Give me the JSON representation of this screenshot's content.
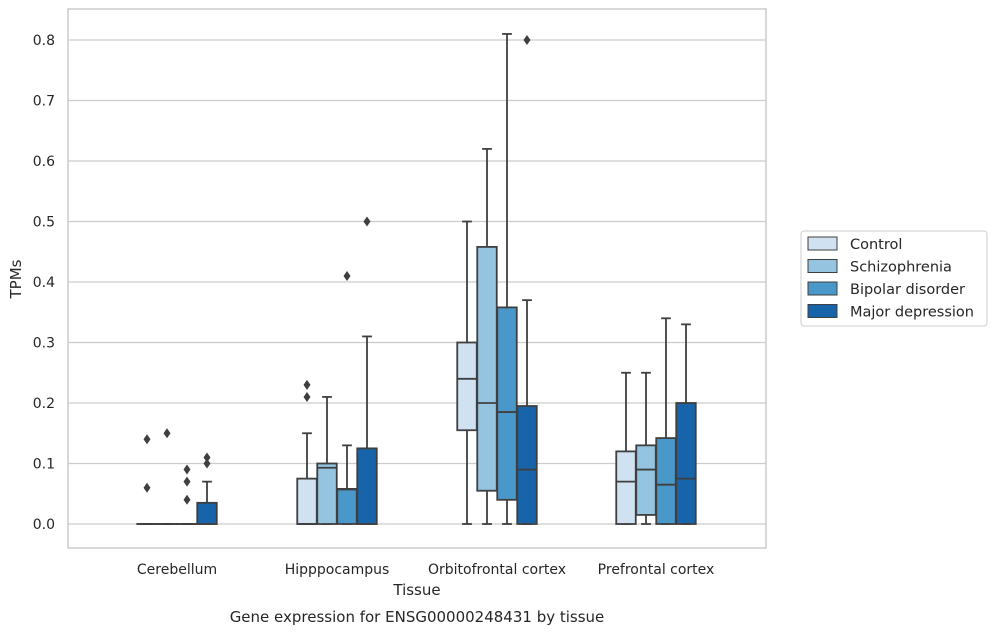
{
  "chart_data": {
    "type": "box",
    "title": "",
    "caption": "Gene expression for ENSG00000248431 by tissue",
    "xlabel": "Tissue",
    "ylabel": "TPMs",
    "ylim": [
      -0.04,
      0.85
    ],
    "yticks": [
      0.0,
      0.1,
      0.2,
      0.3,
      0.4,
      0.5,
      0.6,
      0.7,
      0.8
    ],
    "ytick_labels": [
      "0.0",
      "0.1",
      "0.2",
      "0.3",
      "0.4",
      "0.5",
      "0.6",
      "0.7",
      "0.8"
    ],
    "grid": "horizontal",
    "legend_position": "right",
    "categories": [
      "Cerebellum",
      "Hipppocampus",
      "Orbitofrontal cortex",
      "Prefrontal cortex"
    ],
    "series": [
      {
        "name": "Control",
        "color": "#d0e1f2",
        "boxes": [
          {
            "q1": 0.0,
            "median": 0.0,
            "q3": 0.0,
            "whisker_low": 0.0,
            "whisker_high": 0.0,
            "outliers": [
              0.06,
              0.14
            ]
          },
          {
            "q1": 0.0,
            "median": 0.0,
            "q3": 0.075,
            "whisker_low": 0.0,
            "whisker_high": 0.15,
            "outliers": [
              0.21,
              0.23
            ]
          },
          {
            "q1": 0.155,
            "median": 0.24,
            "q3": 0.3,
            "whisker_low": 0.0,
            "whisker_high": 0.5,
            "outliers": []
          },
          {
            "q1": 0.0,
            "median": 0.07,
            "q3": 0.12,
            "whisker_low": 0.0,
            "whisker_high": 0.25,
            "outliers": []
          }
        ]
      },
      {
        "name": "Schizophrenia",
        "color": "#94c4df",
        "boxes": [
          {
            "q1": 0.0,
            "median": 0.0,
            "q3": 0.0,
            "whisker_low": 0.0,
            "whisker_high": 0.0,
            "outliers": [
              0.15
            ]
          },
          {
            "q1": 0.0,
            "median": 0.093,
            "q3": 0.1,
            "whisker_low": 0.0,
            "whisker_high": 0.21,
            "outliers": []
          },
          {
            "q1": 0.055,
            "median": 0.2,
            "q3": 0.458,
            "whisker_low": 0.0,
            "whisker_high": 0.62,
            "outliers": []
          },
          {
            "q1": 0.015,
            "median": 0.09,
            "q3": 0.13,
            "whisker_low": 0.0,
            "whisker_high": 0.25,
            "outliers": []
          }
        ]
      },
      {
        "name": "Bipolar disorder",
        "color": "#4a98c9",
        "boxes": [
          {
            "q1": 0.0,
            "median": 0.0,
            "q3": 0.0,
            "whisker_low": 0.0,
            "whisker_high": 0.0,
            "outliers": [
              0.04,
              0.07,
              0.09
            ]
          },
          {
            "q1": 0.0,
            "median": 0.057,
            "q3": 0.058,
            "whisker_low": 0.0,
            "whisker_high": 0.13,
            "outliers": [
              0.41
            ]
          },
          {
            "q1": 0.04,
            "median": 0.185,
            "q3": 0.358,
            "whisker_low": 0.0,
            "whisker_high": 0.81,
            "outliers": []
          },
          {
            "q1": 0.0,
            "median": 0.065,
            "q3": 0.142,
            "whisker_low": 0.0,
            "whisker_high": 0.34,
            "outliers": []
          }
        ]
      },
      {
        "name": "Major depression",
        "color": "#1764ab",
        "boxes": [
          {
            "q1": 0.0,
            "median": 0.0,
            "q3": 0.035,
            "whisker_low": 0.0,
            "whisker_high": 0.07,
            "outliers": [
              0.1,
              0.11
            ]
          },
          {
            "q1": 0.0,
            "median": 0.0,
            "q3": 0.125,
            "whisker_low": 0.0,
            "whisker_high": 0.31,
            "outliers": [
              0.5
            ]
          },
          {
            "q1": 0.0,
            "median": 0.09,
            "q3": 0.195,
            "whisker_low": 0.0,
            "whisker_high": 0.37,
            "outliers": [
              0.8
            ]
          },
          {
            "q1": 0.0,
            "median": 0.075,
            "q3": 0.2,
            "whisker_low": 0.0,
            "whisker_high": 0.33,
            "outliers": []
          }
        ]
      }
    ]
  }
}
